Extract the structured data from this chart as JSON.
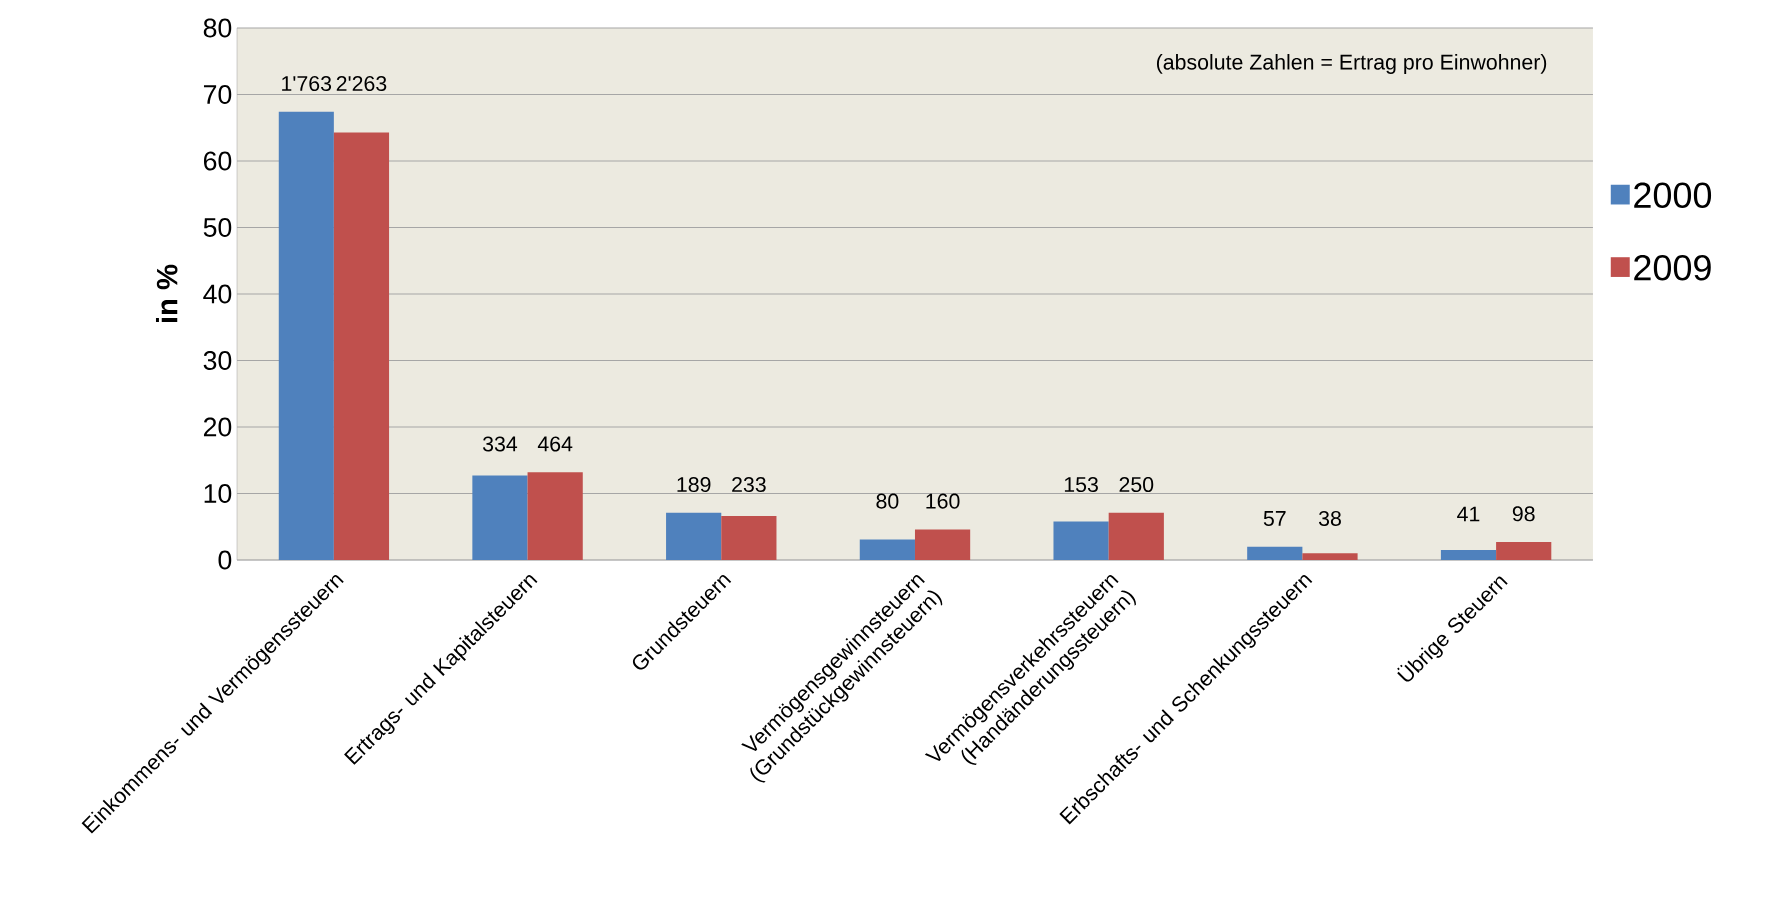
{
  "chart_data": {
    "type": "bar",
    "categories": [
      "Einkommens- und Vermögenssteuern",
      "Ertrags- und Kapitalsteuern",
      "Grundsteuern",
      "Vermögensgewinnsteuern (Grundstückgewinnsteuern)",
      "Vermögensverkehrssteuern (Handänderungssteuern)",
      "Erbschafts- und Schenkungssteuern",
      "Übrige Steuern"
    ],
    "series": [
      {
        "name": "2000",
        "color": "#4f81bd",
        "values": [
          67.4,
          12.7,
          7.1,
          3.1,
          5.8,
          2.0,
          1.5
        ]
      },
      {
        "name": "2009",
        "color": "#c0504d",
        "values": [
          64.3,
          13.2,
          6.6,
          4.6,
          7.1,
          1.0,
          2.7
        ]
      }
    ],
    "ylabel": "in %",
    "ylim": [
      0,
      80
    ],
    "yticks": [
      0,
      10,
      20,
      30,
      40,
      50,
      60,
      70,
      80
    ],
    "grid": "y",
    "legend": "right",
    "annotations": [
      "(absolute Zahlen = Ertrag pro Einwohner)",
      "1'763",
      "2'263",
      "334",
      "464",
      "189",
      "233",
      "80",
      "160",
      "153",
      "250",
      "57",
      "38",
      "41",
      "98"
    ]
  }
}
